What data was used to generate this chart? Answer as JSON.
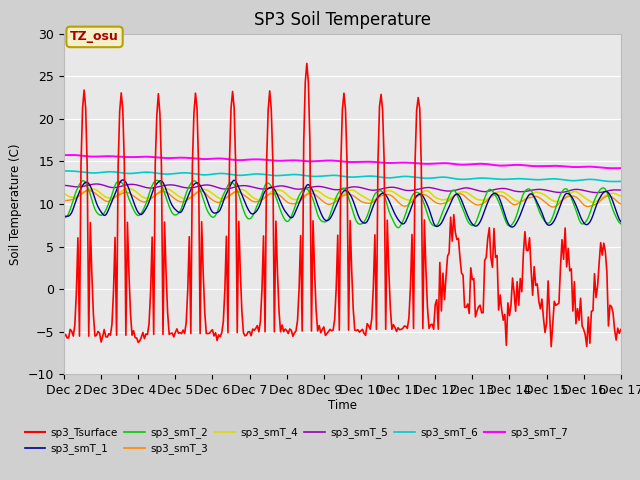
{
  "title": "SP3 Soil Temperature",
  "ylabel": "Soil Temperature (C)",
  "xlabel": "Time",
  "ylim": [
    -10,
    30
  ],
  "xlim": [
    0,
    360
  ],
  "plot_bg_color": "#e8e8e8",
  "fig_bg_color": "#d0d0d0",
  "annotation_text": "TZ_osu",
  "annotation_bg": "#f5f0c8",
  "annotation_border": "#b8a000",
  "annotation_color": "#aa0000",
  "series_colors": {
    "sp3_Tsurface": "#ff0000",
    "sp3_smT_1": "#000099",
    "sp3_smT_2": "#00cc00",
    "sp3_smT_3": "#ff8800",
    "sp3_smT_4": "#dddd00",
    "sp3_smT_5": "#9900bb",
    "sp3_smT_6": "#00cccc",
    "sp3_smT_7": "#ff00ff"
  },
  "xtick_labels": [
    "Dec 2",
    "Dec 3",
    "Dec 4",
    "Dec 5",
    "Dec 6",
    "Dec 7",
    "Dec 8",
    "Dec 9",
    "Dec 10",
    "Dec 11",
    "Dec 12",
    "Dec 13",
    "Dec 14",
    "Dec 15",
    "Dec 16",
    "Dec 17"
  ],
  "xtick_positions": [
    0,
    24,
    48,
    72,
    96,
    120,
    144,
    168,
    192,
    216,
    240,
    264,
    288,
    312,
    336,
    360
  ],
  "ytick_positions": [
    -10,
    -5,
    0,
    5,
    10,
    15,
    20,
    25,
    30
  ]
}
